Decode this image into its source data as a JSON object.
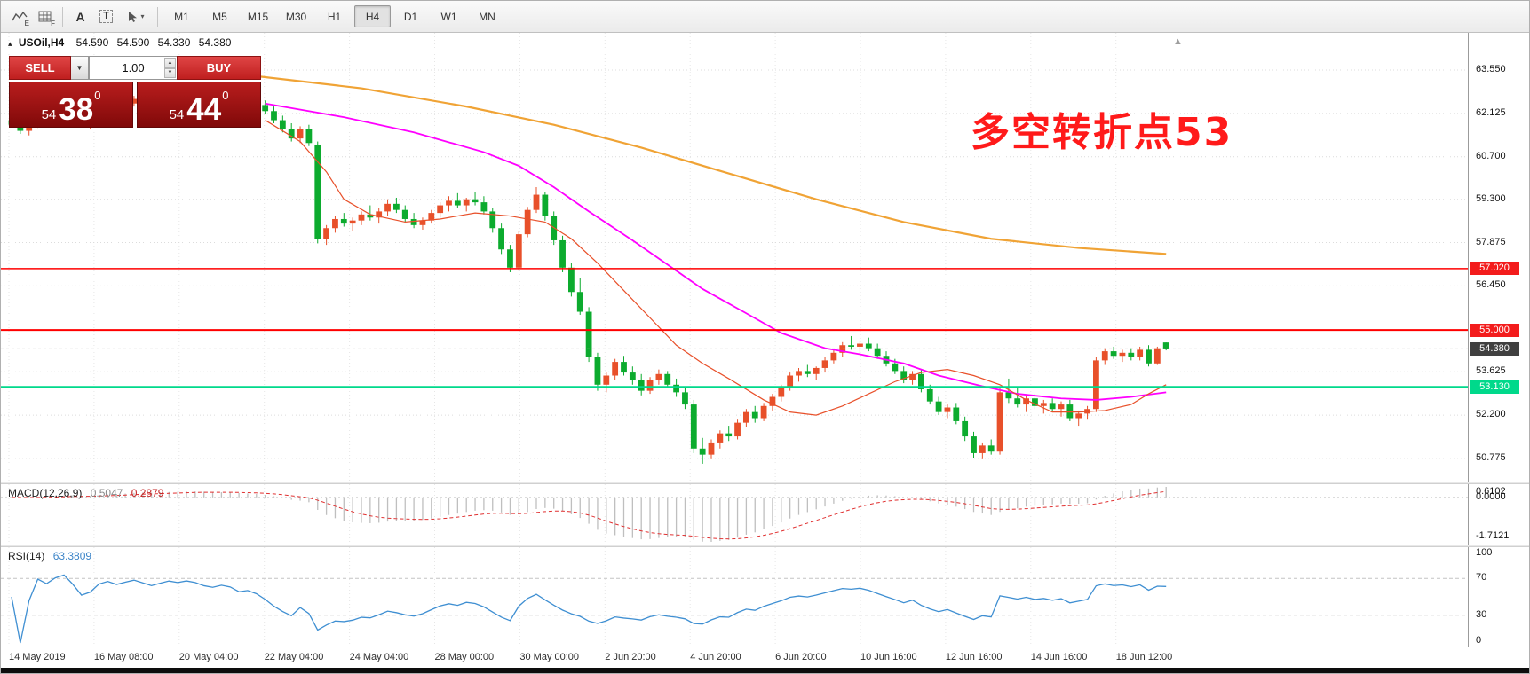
{
  "toolbar": {
    "icon_sub_e": "E",
    "icon_sub_f": "F",
    "icon_a": "A",
    "icon_t": "T",
    "timeframes": [
      "M1",
      "M5",
      "M15",
      "M30",
      "H1",
      "H4",
      "D1",
      "W1",
      "MN"
    ],
    "active_timeframe": "H4"
  },
  "header": {
    "collapse_glyph": "▴",
    "symbol": "USOil,H4",
    "open": "54.590",
    "high": "54.590",
    "low": "54.330",
    "close": "54.380"
  },
  "trade_panel": {
    "sell_label": "SELL",
    "buy_label": "BUY",
    "volume": "1.00",
    "bid": {
      "small": "54",
      "big": "38",
      "sup": "0"
    },
    "ask": {
      "small": "54",
      "big": "44",
      "sup": "0"
    }
  },
  "annotation": {
    "text": "多空转折点53",
    "color": "#ff1a1a"
  },
  "macd": {
    "label": "MACD(12,26,9)",
    "value_main": "0.5047",
    "value_signal": "0.2879",
    "axis": [
      "0.6102",
      "0.0000",
      "-1.7121"
    ],
    "params": {
      "fast": 12,
      "slow": 26,
      "signal": 9
    }
  },
  "rsi": {
    "label": "RSI(14)",
    "value": "63.3809",
    "period": 14,
    "levels": [
      70,
      30
    ],
    "axis": [
      {
        "text": "100",
        "value": 100
      },
      {
        "text": "70",
        "value": 70
      },
      {
        "text": "30",
        "value": 30
      },
      {
        "text": "0",
        "value": 0
      }
    ]
  },
  "chart_data": {
    "type": "candlestick",
    "symbol": "USOil",
    "timeframe": "H4",
    "ylim": [
      50.3,
      63.8
    ],
    "colors": {
      "up": "#e8502a",
      "down": "#0cab2e",
      "ma_fast": "#e8502a",
      "ma_mid": "#ff00ff",
      "ma_slow": "#f0a335",
      "rsi": "#3f8fd2",
      "macd_hist": "#bfbfbf",
      "macd_signal": "#e03030",
      "hline_red": "#ff0000",
      "hline_green": "#00d98b"
    },
    "axis_ticks": [
      {
        "text": "63.550",
        "value": 63.55
      },
      {
        "text": "62.125",
        "value": 62.125
      },
      {
        "text": "60.700",
        "value": 60.7
      },
      {
        "text": "59.300",
        "value": 59.3
      },
      {
        "text": "57.875",
        "value": 57.875
      },
      {
        "text": "56.450",
        "value": 56.45
      },
      {
        "text": "53.625",
        "value": 53.625
      },
      {
        "text": "52.200",
        "value": 52.2
      },
      {
        "text": "50.775",
        "value": 50.775
      }
    ],
    "hlines": [
      {
        "price": 57.02,
        "color": "#ff0000",
        "width": 1.5
      },
      {
        "price": 55.0,
        "color": "#ff0000",
        "width": 2
      },
      {
        "price": 53.13,
        "color": "#00d98b",
        "width": 2
      },
      {
        "price": 54.38,
        "color": "#b5b5b5",
        "width": 1,
        "dash": "3,3"
      }
    ],
    "price_badges": [
      {
        "text": "57.020",
        "price": 57.02,
        "bg": "#f31c1c",
        "fg": "#ffffff"
      },
      {
        "text": "55.000",
        "price": 55.0,
        "bg": "#f31c1c",
        "fg": "#ffffff"
      },
      {
        "text": "54.380",
        "price": 54.38,
        "bg": "#404040",
        "fg": "#ffffff"
      },
      {
        "text": "53.130",
        "price": 53.13,
        "bg": "#00d98b",
        "fg": "#ffffff"
      }
    ],
    "time_labels": [
      "14 May 2019",
      "16 May 08:00",
      "20 May 04:00",
      "22 May 04:00",
      "24 May 04:00",
      "28 May 00:00",
      "30 May 00:00",
      "2 Jun 20:00",
      "4 Jun 20:00",
      "6 Jun 20:00",
      "10 Jun 16:00",
      "12 Jun 16:00",
      "14 Jun 16:00",
      "18 Jun 12:00"
    ],
    "candles": [
      [
        61.9,
        62.05,
        61.7,
        61.75
      ],
      [
        61.75,
        61.85,
        61.45,
        61.55
      ],
      [
        61.55,
        61.8,
        61.4,
        61.72
      ],
      [
        61.72,
        62.1,
        61.65,
        62.0
      ],
      [
        62.0,
        62.2,
        61.85,
        61.95
      ],
      [
        61.95,
        62.15,
        61.8,
        62.1
      ],
      [
        62.1,
        62.25,
        61.9,
        62.2
      ],
      [
        62.2,
        62.3,
        61.95,
        62.05
      ],
      [
        62.05,
        62.15,
        61.7,
        61.8
      ],
      [
        61.8,
        61.95,
        61.6,
        61.9
      ],
      [
        61.9,
        62.3,
        61.85,
        62.25
      ],
      [
        62.25,
        62.45,
        62.1,
        62.4
      ],
      [
        62.4,
        62.55,
        62.2,
        62.3
      ],
      [
        62.3,
        62.5,
        62.15,
        62.45
      ],
      [
        62.45,
        62.7,
        62.35,
        62.6
      ],
      [
        62.6,
        62.75,
        62.4,
        62.5
      ],
      [
        62.5,
        62.65,
        62.3,
        62.4
      ],
      [
        62.4,
        62.6,
        62.25,
        62.55
      ],
      [
        62.55,
        62.8,
        62.45,
        62.7
      ],
      [
        62.7,
        62.85,
        62.55,
        62.65
      ],
      [
        62.65,
        62.8,
        62.5,
        62.75
      ],
      [
        62.75,
        62.9,
        62.6,
        62.7
      ],
      [
        62.7,
        62.85,
        62.55,
        62.6
      ],
      [
        62.6,
        62.75,
        62.45,
        62.55
      ],
      [
        62.55,
        62.7,
        62.4,
        62.65
      ],
      [
        62.65,
        62.8,
        62.5,
        62.6
      ],
      [
        62.6,
        62.7,
        62.35,
        62.45
      ],
      [
        62.45,
        62.6,
        62.3,
        62.5
      ],
      [
        62.5,
        62.65,
        62.35,
        62.4
      ],
      [
        62.4,
        62.55,
        62.1,
        62.2
      ],
      [
        62.2,
        62.35,
        61.8,
        61.9
      ],
      [
        61.9,
        62.05,
        61.5,
        61.6
      ],
      [
        61.6,
        61.8,
        61.2,
        61.3
      ],
      [
        61.3,
        61.7,
        61.15,
        61.6
      ],
      [
        61.6,
        61.75,
        61.05,
        61.15
      ],
      [
        61.1,
        61.2,
        57.85,
        58.0
      ],
      [
        58.0,
        58.45,
        57.8,
        58.35
      ],
      [
        58.35,
        58.75,
        58.2,
        58.65
      ],
      [
        58.65,
        58.85,
        58.4,
        58.5
      ],
      [
        58.5,
        58.7,
        58.25,
        58.6
      ],
      [
        58.6,
        58.9,
        58.45,
        58.8
      ],
      [
        58.8,
        59.1,
        58.6,
        58.7
      ],
      [
        58.7,
        59.0,
        58.5,
        58.9
      ],
      [
        58.9,
        59.3,
        58.75,
        59.15
      ],
      [
        59.15,
        59.35,
        58.85,
        58.95
      ],
      [
        58.95,
        59.1,
        58.55,
        58.65
      ],
      [
        58.65,
        58.85,
        58.35,
        58.45
      ],
      [
        58.45,
        58.7,
        58.3,
        58.6
      ],
      [
        58.6,
        58.95,
        58.5,
        58.85
      ],
      [
        58.85,
        59.2,
        58.7,
        59.1
      ],
      [
        59.1,
        59.4,
        58.9,
        59.25
      ],
      [
        59.25,
        59.5,
        59.0,
        59.1
      ],
      [
        59.1,
        59.35,
        58.9,
        59.3
      ],
      [
        59.3,
        59.55,
        59.1,
        59.2
      ],
      [
        59.2,
        59.4,
        58.8,
        58.9
      ],
      [
        58.9,
        59.0,
        58.2,
        58.35
      ],
      [
        58.35,
        58.5,
        57.5,
        57.65
      ],
      [
        57.65,
        57.8,
        56.9,
        57.05
      ],
      [
        57.05,
        58.25,
        56.95,
        58.15
      ],
      [
        58.15,
        59.05,
        58.05,
        58.95
      ],
      [
        58.95,
        59.7,
        58.85,
        59.45
      ],
      [
        59.45,
        59.55,
        58.6,
        58.75
      ],
      [
        58.75,
        58.9,
        57.8,
        57.95
      ],
      [
        57.95,
        58.1,
        56.9,
        57.05
      ],
      [
        57.05,
        57.2,
        56.1,
        56.25
      ],
      [
        56.25,
        56.7,
        55.5,
        55.6
      ],
      [
        55.6,
        55.75,
        53.95,
        54.1
      ],
      [
        54.1,
        54.25,
        53.0,
        53.2
      ],
      [
        53.2,
        53.6,
        52.95,
        53.5
      ],
      [
        53.5,
        54.05,
        53.35,
        53.95
      ],
      [
        53.95,
        54.15,
        53.5,
        53.6
      ],
      [
        53.6,
        53.8,
        53.2,
        53.35
      ],
      [
        53.35,
        53.55,
        52.85,
        53.0
      ],
      [
        53.0,
        53.45,
        52.9,
        53.35
      ],
      [
        53.35,
        53.7,
        53.2,
        53.55
      ],
      [
        53.55,
        53.65,
        53.1,
        53.2
      ],
      [
        53.2,
        53.4,
        52.8,
        52.95
      ],
      [
        52.95,
        53.1,
        52.4,
        52.55
      ],
      [
        52.55,
        52.7,
        50.95,
        51.1
      ],
      [
        51.1,
        51.45,
        50.6,
        50.9
      ],
      [
        50.9,
        51.4,
        50.75,
        51.3
      ],
      [
        51.3,
        51.7,
        51.1,
        51.6
      ],
      [
        51.6,
        51.85,
        51.35,
        51.5
      ],
      [
        51.5,
        52.05,
        51.4,
        51.95
      ],
      [
        51.95,
        52.4,
        51.8,
        52.3
      ],
      [
        52.3,
        52.5,
        51.95,
        52.1
      ],
      [
        52.1,
        52.6,
        52.0,
        52.5
      ],
      [
        52.5,
        52.9,
        52.35,
        52.8
      ],
      [
        52.8,
        53.2,
        52.65,
        53.1
      ],
      [
        53.1,
        53.6,
        53.0,
        53.5
      ],
      [
        53.5,
        53.75,
        53.3,
        53.65
      ],
      [
        53.65,
        53.85,
        53.45,
        53.55
      ],
      [
        53.55,
        53.8,
        53.35,
        53.75
      ],
      [
        53.75,
        54.1,
        53.6,
        54.0
      ],
      [
        54.0,
        54.35,
        53.9,
        54.25
      ],
      [
        54.25,
        54.6,
        54.1,
        54.5
      ],
      [
        54.5,
        54.8,
        54.35,
        54.45
      ],
      [
        54.45,
        54.65,
        54.2,
        54.55
      ],
      [
        54.55,
        54.75,
        54.3,
        54.4
      ],
      [
        54.4,
        54.55,
        54.05,
        54.15
      ],
      [
        54.15,
        54.3,
        53.8,
        53.9
      ],
      [
        53.9,
        54.05,
        53.55,
        53.65
      ],
      [
        53.65,
        53.8,
        53.25,
        53.35
      ],
      [
        53.35,
        53.65,
        53.2,
        53.55
      ],
      [
        53.55,
        53.7,
        52.95,
        53.05
      ],
      [
        53.05,
        53.2,
        52.55,
        52.65
      ],
      [
        52.65,
        52.8,
        52.2,
        52.3
      ],
      [
        52.3,
        52.55,
        52.1,
        52.45
      ],
      [
        52.45,
        52.6,
        51.9,
        52.0
      ],
      [
        52.0,
        52.15,
        51.35,
        51.5
      ],
      [
        51.5,
        51.65,
        50.8,
        50.95
      ],
      [
        50.95,
        51.3,
        50.75,
        51.2
      ],
      [
        51.2,
        51.4,
        50.9,
        51.0
      ],
      [
        51.0,
        53.1,
        50.9,
        52.95
      ],
      [
        52.95,
        53.4,
        52.6,
        52.75
      ],
      [
        52.75,
        53.15,
        52.45,
        52.55
      ],
      [
        52.55,
        52.85,
        52.3,
        52.75
      ],
      [
        52.75,
        52.9,
        52.4,
        52.5
      ],
      [
        52.5,
        52.7,
        52.25,
        52.6
      ],
      [
        52.6,
        52.75,
        52.3,
        52.4
      ],
      [
        52.4,
        52.65,
        52.15,
        52.55
      ],
      [
        52.55,
        52.7,
        52.0,
        52.1
      ],
      [
        52.1,
        52.35,
        51.85,
        52.25
      ],
      [
        52.25,
        52.5,
        52.05,
        52.4
      ],
      [
        52.4,
        54.1,
        52.3,
        54.0
      ],
      [
        54.0,
        54.4,
        53.85,
        54.3
      ],
      [
        54.3,
        54.45,
        54.05,
        54.15
      ],
      [
        54.15,
        54.35,
        53.95,
        54.25
      ],
      [
        54.25,
        54.4,
        54.0,
        54.1
      ],
      [
        54.1,
        54.45,
        54.0,
        54.35
      ],
      [
        54.35,
        54.5,
        53.8,
        53.9
      ],
      [
        53.9,
        54.45,
        53.85,
        54.4
      ],
      [
        54.59,
        54.59,
        54.33,
        54.38
      ]
    ],
    "ma_slow_points": [
      [
        28,
        63.35
      ],
      [
        40,
        62.95
      ],
      [
        52,
        62.35
      ],
      [
        62,
        61.75
      ],
      [
        72,
        61.0
      ],
      [
        82,
        60.15
      ],
      [
        92,
        59.3
      ],
      [
        102,
        58.55
      ],
      [
        112,
        58.0
      ],
      [
        122,
        57.7
      ],
      [
        132,
        57.5
      ]
    ],
    "ma_mid_points": [
      [
        29,
        62.45
      ],
      [
        38,
        62.0
      ],
      [
        46,
        61.5
      ],
      [
        54,
        60.85
      ],
      [
        58,
        60.4
      ],
      [
        62,
        59.7
      ],
      [
        66,
        58.9
      ],
      [
        71,
        57.95
      ],
      [
        75,
        57.15
      ],
      [
        79,
        56.35
      ],
      [
        84,
        55.55
      ],
      [
        88,
        54.9
      ],
      [
        93,
        54.4
      ],
      [
        97,
        54.2
      ],
      [
        102,
        53.9
      ],
      [
        106,
        53.5
      ],
      [
        111,
        53.15
      ],
      [
        115,
        52.9
      ],
      [
        120,
        52.75
      ],
      [
        124,
        52.7
      ],
      [
        128,
        52.8
      ],
      [
        132,
        52.95
      ]
    ],
    "ma_fast_points": [
      [
        29,
        61.9
      ],
      [
        33,
        61.2
      ],
      [
        36,
        60.2
      ],
      [
        38,
        59.3
      ],
      [
        41,
        58.8
      ],
      [
        45,
        58.55
      ],
      [
        49,
        58.65
      ],
      [
        53,
        58.85
      ],
      [
        57,
        58.75
      ],
      [
        61,
        58.55
      ],
      [
        64,
        58.0
      ],
      [
        67,
        57.2
      ],
      [
        70,
        56.3
      ],
      [
        73,
        55.4
      ],
      [
        76,
        54.5
      ],
      [
        79,
        53.9
      ],
      [
        82,
        53.4
      ],
      [
        86,
        52.7
      ],
      [
        89,
        52.3
      ],
      [
        92,
        52.2
      ],
      [
        95,
        52.5
      ],
      [
        98,
        52.9
      ],
      [
        101,
        53.3
      ],
      [
        104,
        53.6
      ],
      [
        107,
        53.7
      ],
      [
        110,
        53.5
      ],
      [
        113,
        53.2
      ],
      [
        116,
        52.7
      ],
      [
        119,
        52.3
      ],
      [
        122,
        52.3
      ],
      [
        125,
        52.35
      ],
      [
        128,
        52.55
      ],
      [
        130,
        52.9
      ],
      [
        132,
        53.2
      ]
    ]
  }
}
